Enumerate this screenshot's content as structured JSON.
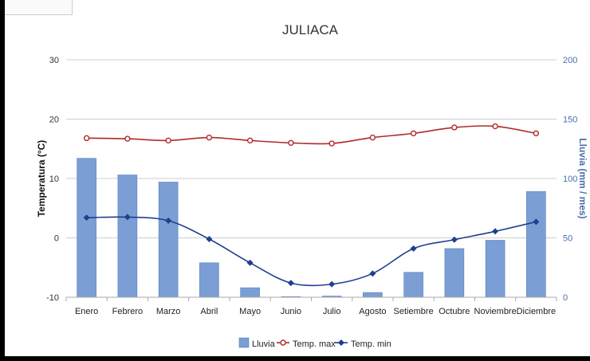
{
  "chart_data": {
    "type": "bar",
    "title": "JULIACA",
    "categories": [
      "Enero",
      "Febrero",
      "Marzo",
      "Abril",
      "Mayo",
      "Junio",
      "Julio",
      "Agosto",
      "Setiembre",
      "Octubre",
      "Noviembre",
      "Diciembre"
    ],
    "y_left": {
      "label": "Temperatura (°C)",
      "ylim": [
        -10,
        30
      ],
      "ticks": [
        -10,
        0,
        10,
        20,
        30
      ]
    },
    "y_right": {
      "label": "Lluvia (mm / mes)",
      "ylim": [
        0,
        200
      ],
      "ticks": [
        0,
        50,
        100,
        150,
        200
      ]
    },
    "grid": true,
    "legend_position": "bottom",
    "series": [
      {
        "name": "Lluvia",
        "type": "bar",
        "axis": "right",
        "color": "#7b9fd4",
        "values": [
          117,
          103,
          97,
          29,
          8,
          0,
          1,
          4,
          21,
          41,
          48,
          89
        ]
      },
      {
        "name": "Temp. max",
        "type": "line",
        "axis": "left",
        "color": "#b02a2a",
        "values": [
          16.8,
          16.7,
          16.4,
          16.9,
          16.4,
          16.0,
          15.9,
          16.9,
          17.6,
          18.6,
          18.8,
          17.6
        ]
      },
      {
        "name": "Temp. min",
        "type": "line",
        "axis": "left",
        "color": "#1f3f8f",
        "values": [
          3.4,
          3.5,
          2.9,
          -0.2,
          -4.2,
          -7.6,
          -7.8,
          -6.0,
          -1.8,
          -0.3,
          1.1,
          2.7
        ]
      }
    ]
  }
}
